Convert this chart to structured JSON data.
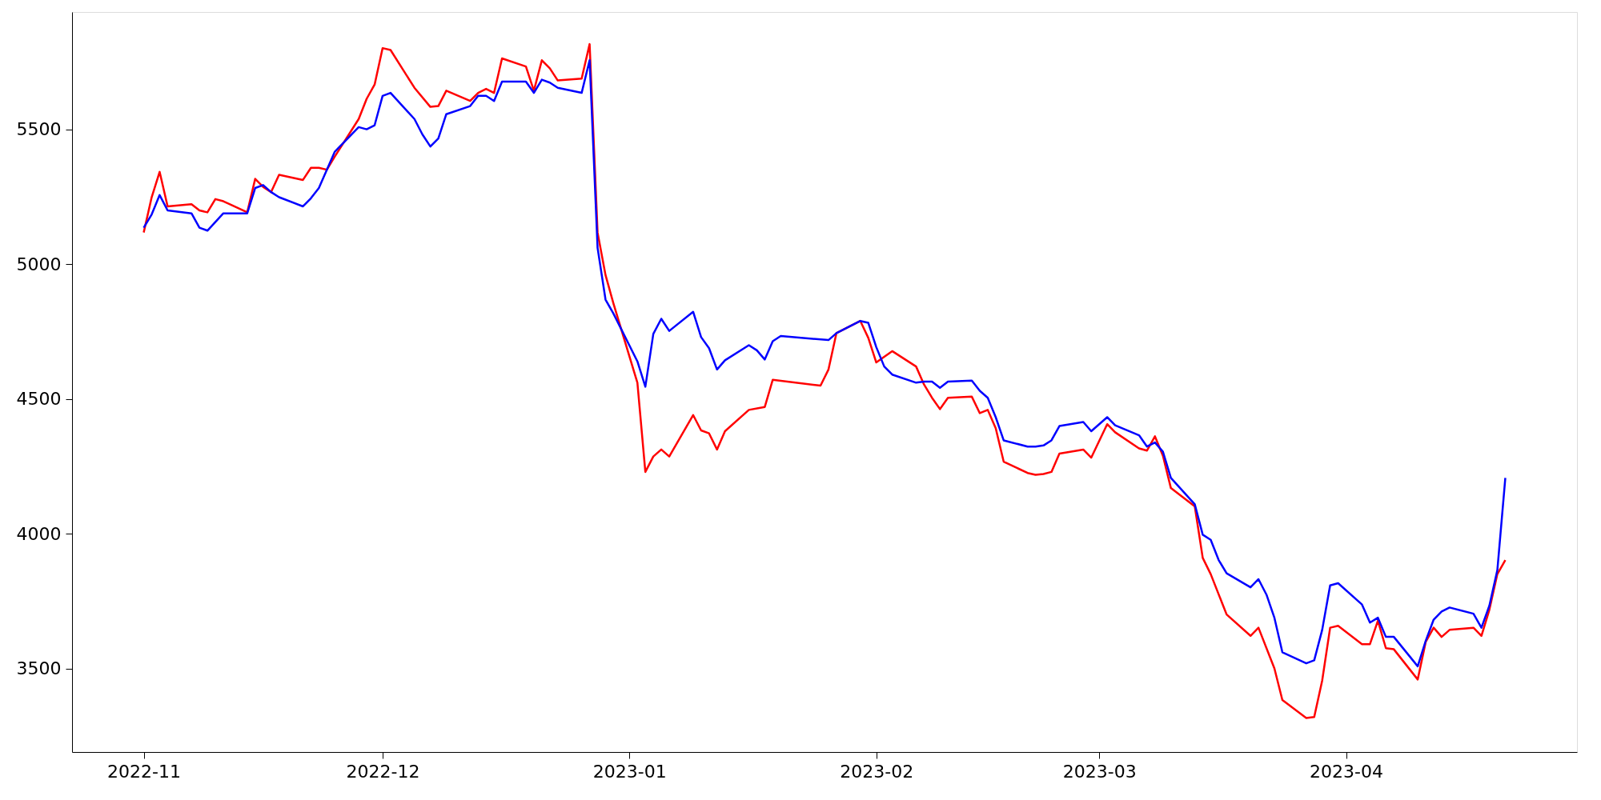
{
  "chart_data": {
    "type": "line",
    "xlim": [
      "2022-10-23",
      "2023-04-30"
    ],
    "xticks": [
      "2022-11",
      "2022-12",
      "2023-01",
      "2023-02",
      "2023-03",
      "2023-04"
    ],
    "ylim": [
      3190,
      5935
    ],
    "yticks": [
      3500,
      4000,
      4500,
      5000,
      5500
    ],
    "line_style": "solid",
    "series": [
      {
        "color": "#ff0000",
        "x": [
          "2022-11-01",
          "2022-11-02",
          "2022-11-03",
          "2022-11-04",
          "2022-11-07",
          "2022-11-08",
          "2022-11-09",
          "2022-11-10",
          "2022-11-11",
          "2022-11-14",
          "2022-11-15",
          "2022-11-16",
          "2022-11-17",
          "2022-11-18",
          "2022-11-21",
          "2022-11-22",
          "2022-11-23",
          "2022-11-24",
          "2022-11-25",
          "2022-11-28",
          "2022-11-29",
          "2022-11-30",
          "2022-12-01",
          "2022-12-02",
          "2022-12-05",
          "2022-12-07",
          "2022-12-08",
          "2022-12-09",
          "2022-12-12",
          "2022-12-13",
          "2022-12-14",
          "2022-12-15",
          "2022-12-16",
          "2022-12-19",
          "2022-12-20",
          "2022-12-21",
          "2022-12-22",
          "2022-12-23",
          "2022-12-26",
          "2022-12-27",
          "2022-12-28",
          "2022-12-29",
          "2022-12-30",
          "2023-01-02",
          "2023-01-03",
          "2023-01-04",
          "2023-01-05",
          "2023-01-06",
          "2023-01-09",
          "2023-01-10",
          "2023-01-11",
          "2023-01-12",
          "2023-01-13",
          "2023-01-16",
          "2023-01-18",
          "2023-01-19",
          "2023-01-25",
          "2023-01-26",
          "2023-01-27",
          "2023-01-30",
          "2023-01-31",
          "2023-02-01",
          "2023-02-03",
          "2023-02-06",
          "2023-02-07",
          "2023-02-08",
          "2023-02-09",
          "2023-02-10",
          "2023-02-13",
          "2023-02-14",
          "2023-02-15",
          "2023-02-16",
          "2023-02-17",
          "2023-02-20",
          "2023-02-21",
          "2023-02-22",
          "2023-02-23",
          "2023-02-24",
          "2023-02-27",
          "2023-02-28",
          "2023-03-02",
          "2023-03-03",
          "2023-03-06",
          "2023-03-07",
          "2023-03-08",
          "2023-03-09",
          "2023-03-10",
          "2023-03-13",
          "2023-03-14",
          "2023-03-15",
          "2023-03-17",
          "2023-03-20",
          "2023-03-21",
          "2023-03-23",
          "2023-03-24",
          "2023-03-27",
          "2023-03-28",
          "2023-03-29",
          "2023-03-30",
          "2023-03-31",
          "2023-04-03",
          "2023-04-04",
          "2023-04-05",
          "2023-04-06",
          "2023-04-07",
          "2023-04-10",
          "2023-04-11",
          "2023-04-12",
          "2023-04-13",
          "2023-04-14",
          "2023-04-17",
          "2023-04-18",
          "2023-04-19",
          "2023-04-20",
          "2023-04-21"
        ],
        "values": [
          5117,
          5248,
          5342,
          5214,
          5222,
          5199,
          5192,
          5241,
          5233,
          5192,
          5316,
          5286,
          5267,
          5331,
          5312,
          5357,
          5357,
          5350,
          5399,
          5538,
          5613,
          5666,
          5801,
          5794,
          5654,
          5583,
          5586,
          5643,
          5605,
          5635,
          5650,
          5635,
          5763,
          5733,
          5643,
          5756,
          5726,
          5681,
          5688,
          5816,
          5117,
          4959,
          4853,
          4560,
          4229,
          4286,
          4312,
          4286,
          4440,
          4383,
          4372,
          4312,
          4380,
          4459,
          4470,
          4571,
          4549,
          4609,
          4744,
          4789,
          4726,
          4635,
          4677,
          4620,
          4553,
          4504,
          4462,
          4504,
          4508,
          4447,
          4459,
          4391,
          4267,
          4225,
          4218,
          4221,
          4229,
          4297,
          4312,
          4282,
          4406,
          4376,
          4316,
          4308,
          4361,
          4289,
          4169,
          4101,
          3910,
          3850,
          3700,
          3621,
          3651,
          3500,
          3383,
          3316,
          3320,
          3455,
          3651,
          3658,
          3590,
          3590,
          3677,
          3575,
          3571,
          3459,
          3598,
          3651,
          3617,
          3643,
          3651,
          3621,
          3718,
          3850,
          3902
        ]
      },
      {
        "color": "#0000ff",
        "x": [
          "2022-11-01",
          "2022-11-02",
          "2022-11-03",
          "2022-11-04",
          "2022-11-07",
          "2022-11-08",
          "2022-11-09",
          "2022-11-11",
          "2022-11-14",
          "2022-11-15",
          "2022-11-16",
          "2022-11-17",
          "2022-11-18",
          "2022-11-21",
          "2022-11-22",
          "2022-11-23",
          "2022-11-25",
          "2022-11-28",
          "2022-11-29",
          "2022-11-30",
          "2022-12-01",
          "2022-12-02",
          "2022-12-05",
          "2022-12-06",
          "2022-12-07",
          "2022-12-08",
          "2022-12-09",
          "2022-12-12",
          "2022-12-13",
          "2022-12-14",
          "2022-12-15",
          "2022-12-16",
          "2022-12-19",
          "2022-12-20",
          "2022-12-21",
          "2022-12-22",
          "2022-12-23",
          "2022-12-26",
          "2022-12-27",
          "2022-12-28",
          "2022-12-29",
          "2022-12-30",
          "2023-01-02",
          "2023-01-03",
          "2023-01-04",
          "2023-01-05",
          "2023-01-06",
          "2023-01-09",
          "2023-01-10",
          "2023-01-11",
          "2023-01-12",
          "2023-01-13",
          "2023-01-16",
          "2023-01-17",
          "2023-01-18",
          "2023-01-19",
          "2023-01-20",
          "2023-01-26",
          "2023-01-27",
          "2023-01-30",
          "2023-01-31",
          "2023-02-01",
          "2023-02-02",
          "2023-02-03",
          "2023-02-06",
          "2023-02-07",
          "2023-02-08",
          "2023-02-09",
          "2023-02-10",
          "2023-02-13",
          "2023-02-14",
          "2023-02-15",
          "2023-02-16",
          "2023-02-17",
          "2023-02-20",
          "2023-02-21",
          "2023-02-22",
          "2023-02-23",
          "2023-02-24",
          "2023-02-27",
          "2023-02-28",
          "2023-03-02",
          "2023-03-03",
          "2023-03-06",
          "2023-03-07",
          "2023-03-08",
          "2023-03-09",
          "2023-03-10",
          "2023-03-13",
          "2023-03-14",
          "2023-03-15",
          "2023-03-16",
          "2023-03-17",
          "2023-03-20",
          "2023-03-21",
          "2023-03-22",
          "2023-03-23",
          "2023-03-24",
          "2023-03-27",
          "2023-03-28",
          "2023-03-29",
          "2023-03-30",
          "2023-03-31",
          "2023-04-03",
          "2023-04-04",
          "2023-04-05",
          "2023-04-06",
          "2023-04-07",
          "2023-04-10",
          "2023-04-11",
          "2023-04-12",
          "2023-04-13",
          "2023-04-14",
          "2023-04-17",
          "2023-04-18",
          "2023-04-19",
          "2023-04-20",
          "2023-04-21"
        ],
        "values": [
          5135,
          5184,
          5256,
          5199,
          5188,
          5135,
          5124,
          5188,
          5188,
          5282,
          5293,
          5267,
          5248,
          5214,
          5244,
          5282,
          5417,
          5508,
          5500,
          5515,
          5624,
          5635,
          5538,
          5481,
          5436,
          5466,
          5556,
          5586,
          5624,
          5624,
          5605,
          5677,
          5677,
          5635,
          5684,
          5673,
          5654,
          5635,
          5756,
          5060,
          4868,
          4816,
          4639,
          4545,
          4741,
          4797,
          4752,
          4823,
          4729,
          4688,
          4609,
          4643,
          4699,
          4680,
          4646,
          4714,
          4733,
          4718,
          4744,
          4789,
          4782,
          4692,
          4620,
          4590,
          4560,
          4564,
          4564,
          4541,
          4564,
          4568,
          4530,
          4504,
          4432,
          4346,
          4323,
          4323,
          4327,
          4346,
          4399,
          4414,
          4380,
          4432,
          4402,
          4365,
          4323,
          4338,
          4304,
          4207,
          4109,
          3996,
          3977,
          3902,
          3853,
          3801,
          3831,
          3774,
          3688,
          3560,
          3519,
          3530,
          3643,
          3808,
          3816,
          3737,
          3670,
          3688,
          3617,
          3617,
          3508,
          3602,
          3681,
          3711,
          3726,
          3703,
          3651,
          3733,
          3865,
          4207
        ]
      }
    ]
  }
}
